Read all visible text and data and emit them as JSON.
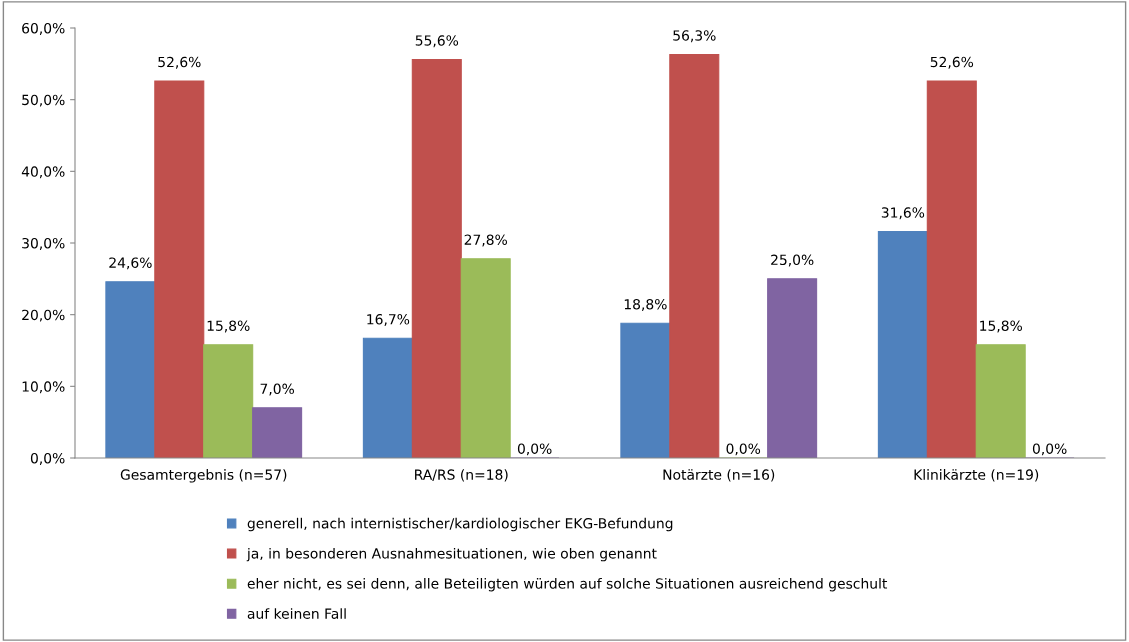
{
  "chart_data": {
    "type": "bar",
    "categories": [
      "Gesamtergebnis (n=57)",
      "RA/RS (n=18)",
      "Notärzte (n=16)",
      "Klinikärzte (n=19)"
    ],
    "series": [
      {
        "name": "generell, nach internistischer/kardiologischer EKG-Befundung",
        "color": "#4f81bd",
        "values": [
          24.6,
          16.7,
          18.8,
          31.6
        ],
        "value_labels": [
          "24,6%",
          "16,7%",
          "18,8%",
          "31,6%"
        ]
      },
      {
        "name": "ja, in besonderen Ausnahmesituationen, wie oben genannt",
        "color": "#c0504d",
        "values": [
          52.6,
          55.6,
          56.3,
          52.6
        ],
        "value_labels": [
          "52,6%",
          "55,6%",
          "56,3%",
          "52,6%"
        ]
      },
      {
        "name": "eher nicht, es sei denn, alle Beteiligten würden auf solche Situationen ausreichend geschult",
        "color": "#9bbb59",
        "values": [
          15.8,
          27.8,
          0,
          15.8
        ],
        "value_labels": [
          "15,8%",
          "27,8%",
          "0,0%",
          "15,8%"
        ]
      },
      {
        "name": "auf keinen Fall",
        "color": "#8064a2",
        "values": [
          7.0,
          0,
          25.0,
          0
        ],
        "value_labels": [
          "7,0%",
          "0,0%",
          "25,0%",
          "0,0%"
        ]
      }
    ],
    "ylim": [
      0,
      60
    ],
    "yticks": [
      {
        "value": 0,
        "label": "0,0%"
      },
      {
        "value": 10,
        "label": "10,0%"
      },
      {
        "value": 20,
        "label": "20,0%"
      },
      {
        "value": 30,
        "label": "30,0%"
      },
      {
        "value": 40,
        "label": "40,0%"
      },
      {
        "value": 50,
        "label": "50,0%"
      },
      {
        "value": 60,
        "label": "60,0%"
      }
    ],
    "grid": false,
    "legend": "bottom"
  }
}
